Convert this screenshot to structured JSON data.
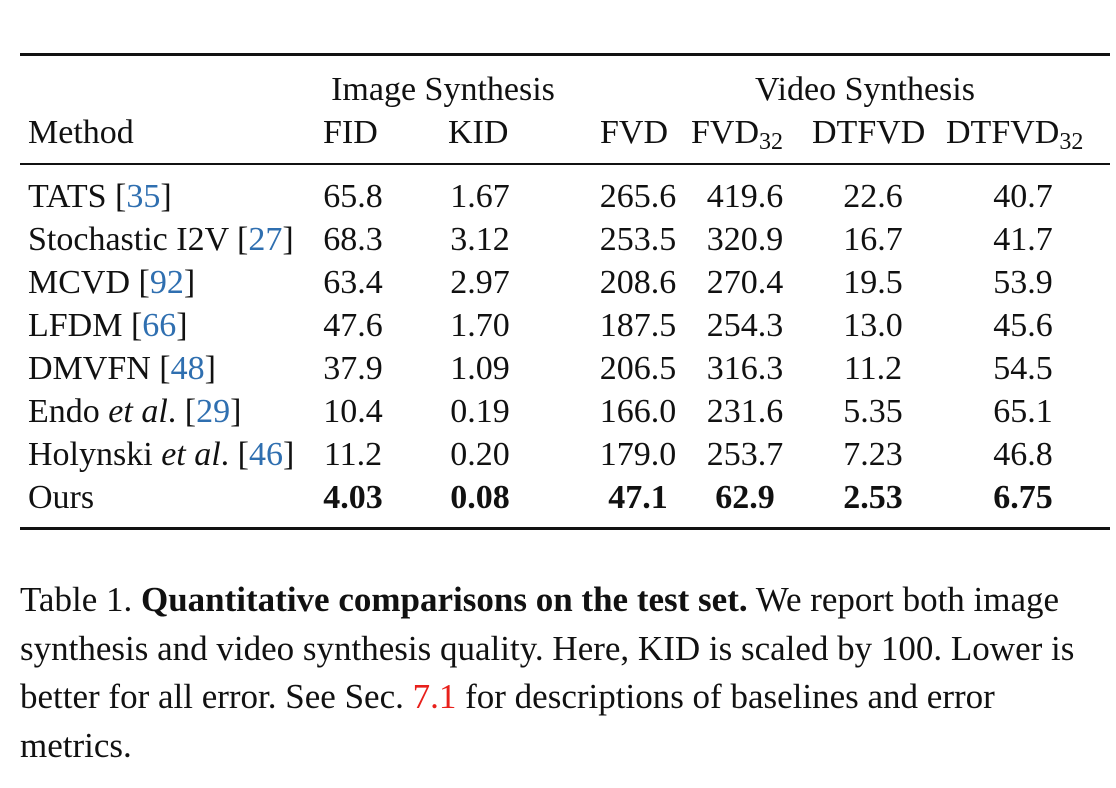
{
  "table": {
    "group_headers": {
      "image": "Image Synthesis",
      "video": "Video Synthesis"
    },
    "columns": [
      "Method",
      "FID",
      "KID",
      "FVD",
      "FVD",
      "DTFVD",
      "DTFVD"
    ],
    "subscripts": {
      "fvd32": "32",
      "dtfvd32": "32"
    },
    "rows": [
      {
        "method": "TATS [",
        "cite": "35",
        "close": "]",
        "values": [
          "65.8",
          "1.67",
          "265.6",
          "419.6",
          "22.6",
          "40.7"
        ]
      },
      {
        "method": "Stochastic I2V [",
        "cite": "27",
        "close": "]",
        "values": [
          "68.3",
          "3.12",
          "253.5",
          "320.9",
          "16.7",
          "41.7"
        ]
      },
      {
        "method": "MCVD [",
        "cite": "92",
        "close": "]",
        "values": [
          "63.4",
          "2.97",
          "208.6",
          "270.4",
          "19.5",
          "53.9"
        ]
      },
      {
        "method": "LFDM [",
        "cite": "66",
        "close": "]",
        "values": [
          "47.6",
          "1.70",
          "187.5",
          "254.3",
          "13.0",
          "45.6"
        ]
      },
      {
        "method": "DMVFN [",
        "cite": "48",
        "close": "]",
        "values": [
          "37.9",
          "1.09",
          "206.5",
          "316.3",
          "11.2",
          "54.5"
        ]
      },
      {
        "method": "Endo ",
        "italic": "et al",
        "after": ". [",
        "cite": "29",
        "close": "]",
        "values": [
          "10.4",
          "0.19",
          "166.0",
          "231.6",
          "5.35",
          "65.1"
        ]
      },
      {
        "method": "Holynski ",
        "italic": "et al",
        "after": ". [",
        "cite": "46",
        "close": "]",
        "values": [
          "11.2",
          "0.20",
          "179.0",
          "253.7",
          "7.23",
          "46.8"
        ]
      },
      {
        "method": "Ours",
        "values": [
          "4.03",
          "0.08",
          "47.1",
          "62.9",
          "2.53",
          "6.75"
        ]
      }
    ]
  },
  "caption": {
    "label": "Table 1. ",
    "bold": "Quantitative comparisons on the test set.",
    "text1": " We report both image synthesis and video synthesis quality. Here, KID is scaled by 100. Lower is better for all error. See Sec. ",
    "ref": "7.1",
    "text2": " for descriptions of baselines and error metrics."
  },
  "colors": {
    "cite": "#2f6fb0",
    "ref": "#e8201b"
  }
}
